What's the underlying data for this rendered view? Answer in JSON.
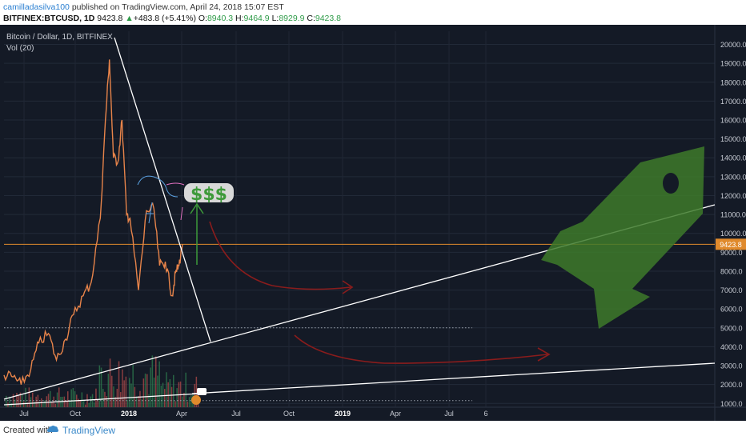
{
  "header": {
    "author": "camilladasilva100",
    "published": "published on TradingView.com, April 24, 2018 15:07 EST",
    "symbol": "BITFINEX:BTCUSD, 1D",
    "last": "9423.8",
    "change": "+483.8 (+5.41%)",
    "o_label": "O:",
    "o": "8940.3",
    "h_label": "H:",
    "h": "9464.9",
    "l_label": "L:",
    "l": "8929.9",
    "c_label": "C:",
    "c": "9423.8"
  },
  "chart_title": "Bitcoin / Dollar, 1D, BITFINEX",
  "volume_label": "Vol (20)",
  "price_badge": "9423.8",
  "colors": {
    "background": "#141a26",
    "up": "#e8844a",
    "down": "#e8844a",
    "vol_up": "#2e7d4f",
    "vol_down": "#b04a4a",
    "trend": "#ffffff",
    "arrow": "#8a1c1c",
    "rocket": "#3d7a2a",
    "price_line": "#e08a2c"
  },
  "annotations": {
    "dollar_text": "$$$"
  },
  "footer": {
    "created": "Created with",
    "brand": "TradingView"
  },
  "chart_data": {
    "type": "line",
    "title": "Bitcoin / Dollar, 1D, BITFINEX",
    "series": [
      {
        "name": "",
        "x": [
          "2017-06-15",
          "2017-07-01",
          "2017-07-15",
          "2017-08-01",
          "2017-08-15",
          "2017-09-01",
          "2017-09-15",
          "2017-10-01",
          "2017-10-15",
          "2017-11-01",
          "2017-11-15",
          "2017-12-01",
          "2017-12-10",
          "2017-12-17",
          "2017-12-24",
          "2018-01-01",
          "2018-01-08",
          "2018-01-16",
          "2018-01-22",
          "2018-02-06",
          "2018-02-20",
          "2018-03-05",
          "2018-03-15",
          "2018-03-25",
          "2018-04-06",
          "2018-04-12",
          "2018-04-18",
          "2018-04-24"
        ],
        "values": [
          2500,
          2400,
          2000,
          2800,
          4200,
          4700,
          3300,
          4400,
          5700,
          6700,
          7400,
          10800,
          16000,
          19200,
          14000,
          13800,
          16000,
          11000,
          10800,
          7000,
          11200,
          11300,
          8300,
          8500,
          6700,
          7900,
          8300,
          9423.8
        ]
      }
    ],
    "x_ticks": [
      "Jul",
      "Oct",
      "2018",
      "Apr",
      "Jul",
      "Oct",
      "2019",
      "Apr",
      "Jul",
      "6"
    ],
    "y_ticks": [
      "1000.0",
      "2000.0",
      "3000.0",
      "4000.0",
      "5000.0",
      "6000.0",
      "7000.0",
      "8000.0",
      "9000.0",
      "10000.0",
      "11000.0",
      "12000.0",
      "13000.0",
      "14000.0",
      "15000.0",
      "16000.0",
      "17000.0",
      "18000.0",
      "19000.0",
      "20000.0"
    ],
    "ylim": [
      800,
      20700
    ],
    "current_price": 9423.8
  }
}
